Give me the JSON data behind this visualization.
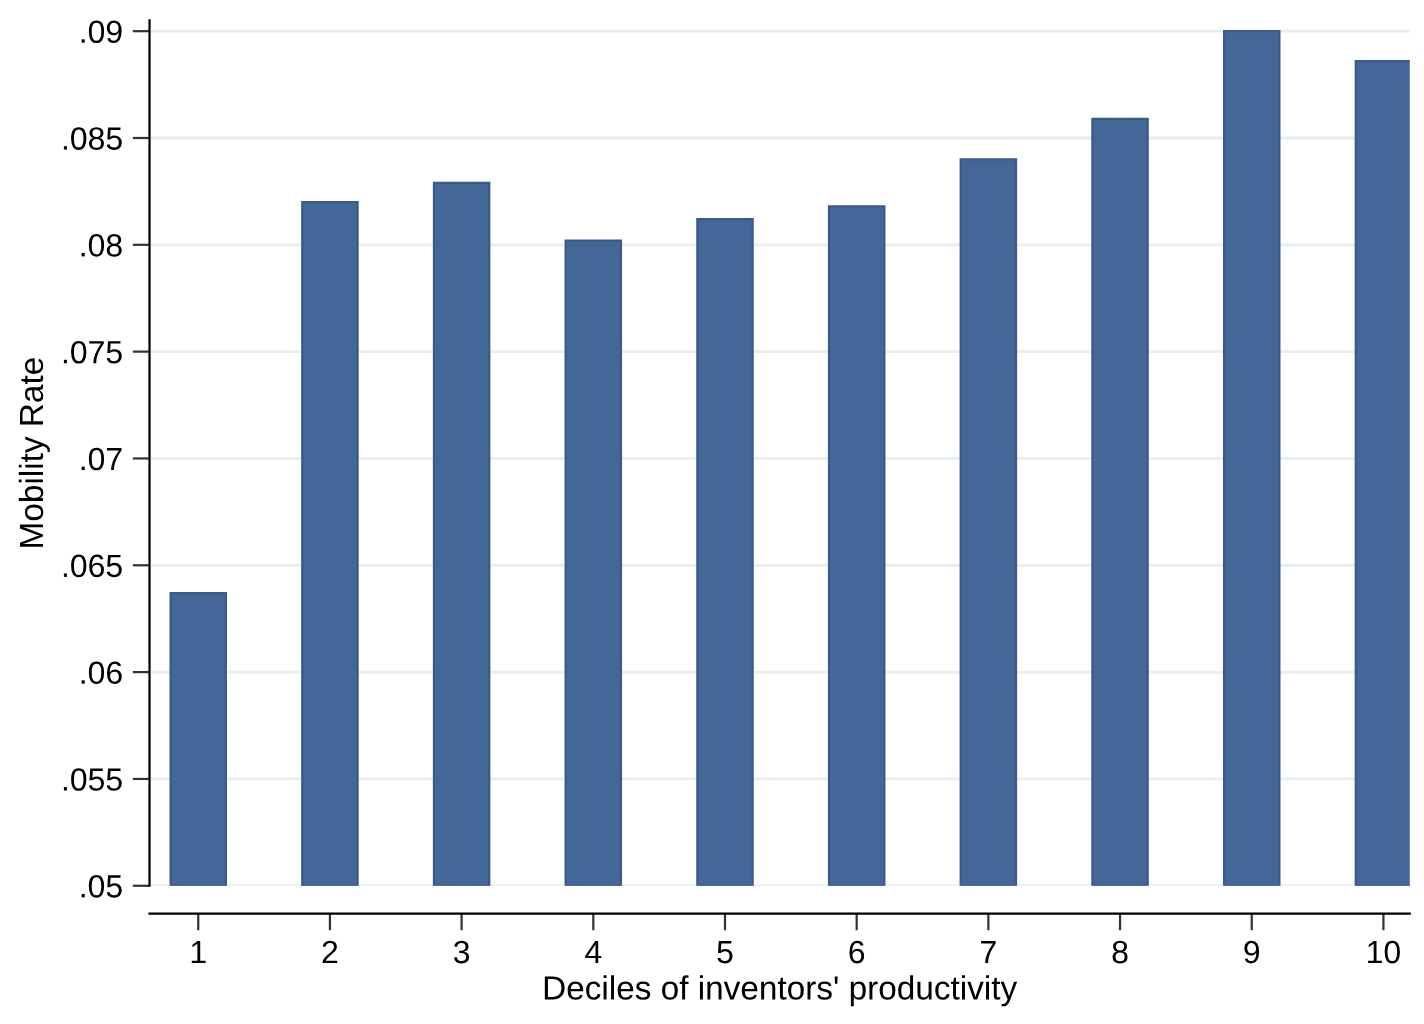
{
  "chart_data": {
    "type": "bar",
    "xlabel": "Deciles of inventors' productivity",
    "ylabel": "Mobility Rate",
    "categories": [
      "1",
      "2",
      "3",
      "4",
      "5",
      "6",
      "7",
      "8",
      "9",
      "10"
    ],
    "values": [
      0.0637,
      0.082,
      0.0829,
      0.0802,
      0.0812,
      0.0818,
      0.084,
      0.0859,
      0.09,
      0.0886
    ],
    "color": "#44679a",
    "ylim": [
      0.05,
      0.0905
    ],
    "yticks": [
      {
        "value": 0.05,
        "label": ".05"
      },
      {
        "value": 0.055,
        "label": ".055"
      },
      {
        "value": 0.06,
        "label": ".06"
      },
      {
        "value": 0.065,
        "label": ".065"
      },
      {
        "value": 0.07,
        "label": ".07"
      },
      {
        "value": 0.075,
        "label": ".075"
      },
      {
        "value": 0.08,
        "label": ".08"
      },
      {
        "value": 0.085,
        "label": ".085"
      },
      {
        "value": 0.09,
        "label": ".09"
      }
    ],
    "grid": "y"
  }
}
